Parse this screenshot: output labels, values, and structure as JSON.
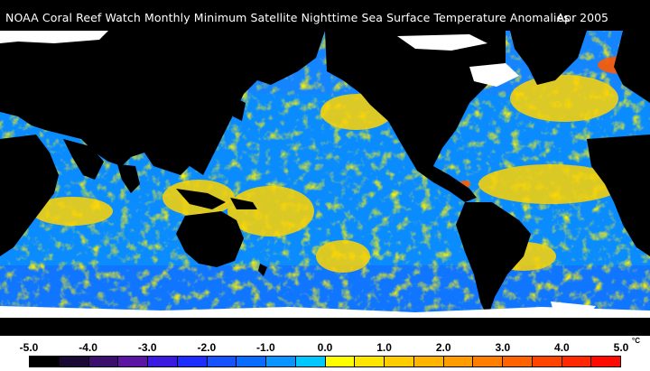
{
  "title": {
    "text": "NOAA Coral Reef Watch Monthly Minimum Satellite Nighttime Sea Surface Temperature Anomalies",
    "date": "Apr 2005"
  },
  "map": {
    "projection": "equirectangular",
    "land_color": "#000000",
    "sea_ice_color": "#ffffff",
    "dominant_ocean_colors": [
      "#0a8cff",
      "#2a6bff",
      "#ffe000",
      "#ffb000",
      "#ff4400"
    ]
  },
  "legend": {
    "min": -5.0,
    "max": 5.0,
    "ticks": [
      "-5.0",
      "-4.0",
      "-3.0",
      "-2.0",
      "-1.0",
      "0.0",
      "1.0",
      "2.0",
      "3.0",
      "4.0",
      "5.0"
    ],
    "unit": "°C",
    "colors": [
      "#000000",
      "#1a0a33",
      "#3b0f6b",
      "#5a16a3",
      "#3a1ae0",
      "#1e2dff",
      "#1752ff",
      "#0a6cff",
      "#0a94ff",
      "#00c8ff",
      "#ffff00",
      "#ffe600",
      "#ffcc00",
      "#ffb400",
      "#ff9c00",
      "#ff7e00",
      "#ff6200",
      "#ff4400",
      "#ff2800",
      "#ff0a00"
    ]
  }
}
